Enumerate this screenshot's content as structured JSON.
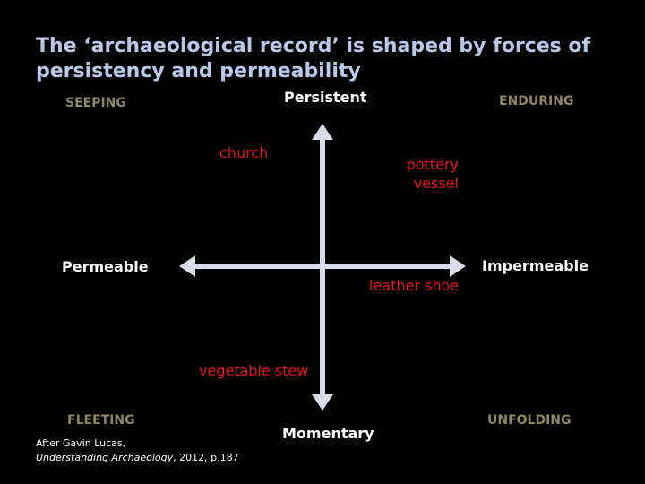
{
  "title": "The ‘archaeological record’ is shaped by forces of persistency and permeability",
  "axes": {
    "top": "Persistent",
    "bottom": "Momentary",
    "left": "Permeable",
    "right": "Impermeable"
  },
  "quadrants": {
    "top_left": "SEEPING",
    "top_right": "ENDURING",
    "bottom_left": "FLEETING",
    "bottom_right": "UNFOLDING"
  },
  "items": {
    "church": "church",
    "pottery_line1": "pottery",
    "pottery_line2": "vessel",
    "leather_shoe": "leather shoe",
    "vegetable_stew": "vegetable stew"
  },
  "citation": {
    "line1": "After Gavin Lucas,",
    "book": "Understanding Archaeology",
    "rest": ", 2012, p.187"
  },
  "colors": {
    "background": "#000000",
    "title": "#b8c8e8",
    "quadrant_label": "#8f8760",
    "item": "#e8101a",
    "axis": "#d8dce8"
  }
}
